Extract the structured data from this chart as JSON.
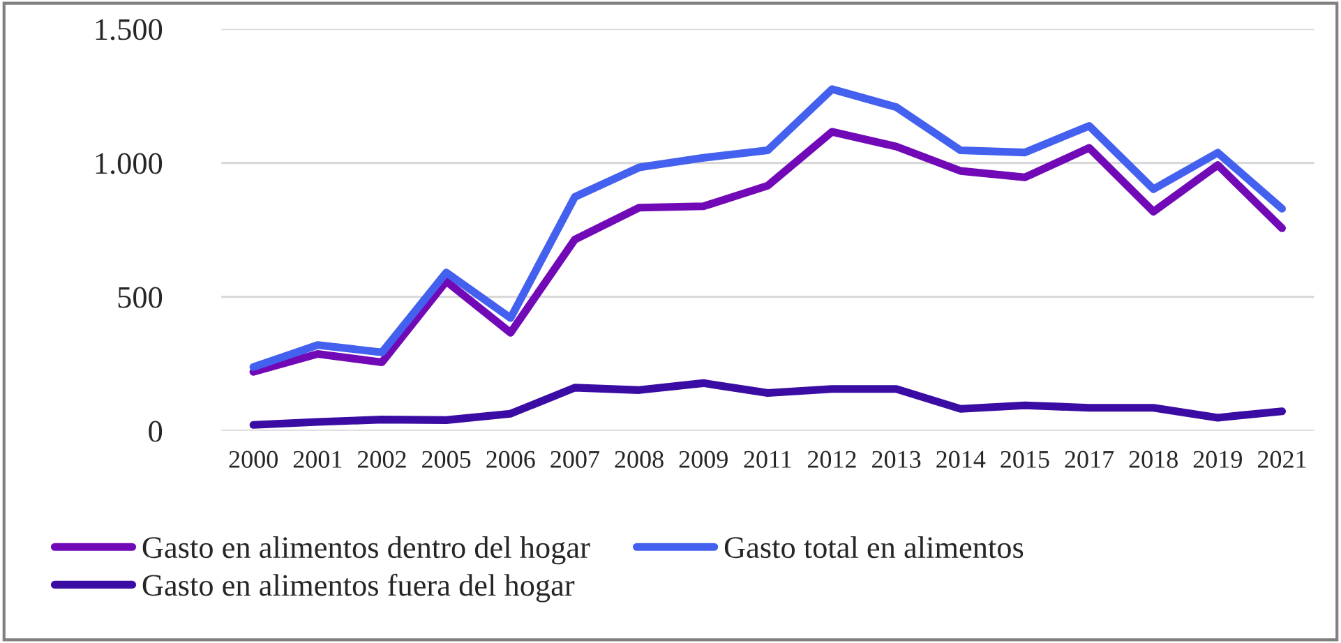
{
  "chart_data": {
    "type": "line",
    "categories": [
      "2000",
      "2001",
      "2002",
      "2005",
      "2006",
      "2007",
      "2008",
      "2009",
      "2011",
      "2012",
      "2013",
      "2014",
      "2015",
      "2017",
      "2018",
      "2019",
      "2021"
    ],
    "series": [
      {
        "name": "Gasto en alimentos dentro del hogar",
        "color": "#7209b7",
        "values": [
          220,
          287,
          256,
          558,
          366,
          714,
          833,
          838,
          915,
          1116,
          1061,
          970,
          946,
          1056,
          818,
          992,
          756
        ]
      },
      {
        "name": "Gasto en alimentos fuera del hogar",
        "color": "#3a0ca3",
        "values": [
          22,
          33,
          42,
          40,
          64,
          161,
          152,
          178,
          141,
          156,
          156,
          82,
          95,
          86,
          86,
          49,
          73
        ]
      },
      {
        "name": "Gasto total en alimentos",
        "color": "#4361ee",
        "values": [
          238,
          320,
          293,
          591,
          421,
          873,
          983,
          1019,
          1047,
          1275,
          1208,
          1047,
          1039,
          1138,
          902,
          1038,
          829
        ]
      }
    ],
    "ylim": [
      0,
      1500
    ],
    "yticks": [
      {
        "value": 0,
        "label": "0"
      },
      {
        "value": 500,
        "label": "500"
      },
      {
        "value": 1000,
        "label": "1.000"
      },
      {
        "value": 1500,
        "label": "1.500"
      }
    ],
    "grid": "y",
    "legend": "bottom",
    "marker": "none",
    "line_style": "solid"
  }
}
